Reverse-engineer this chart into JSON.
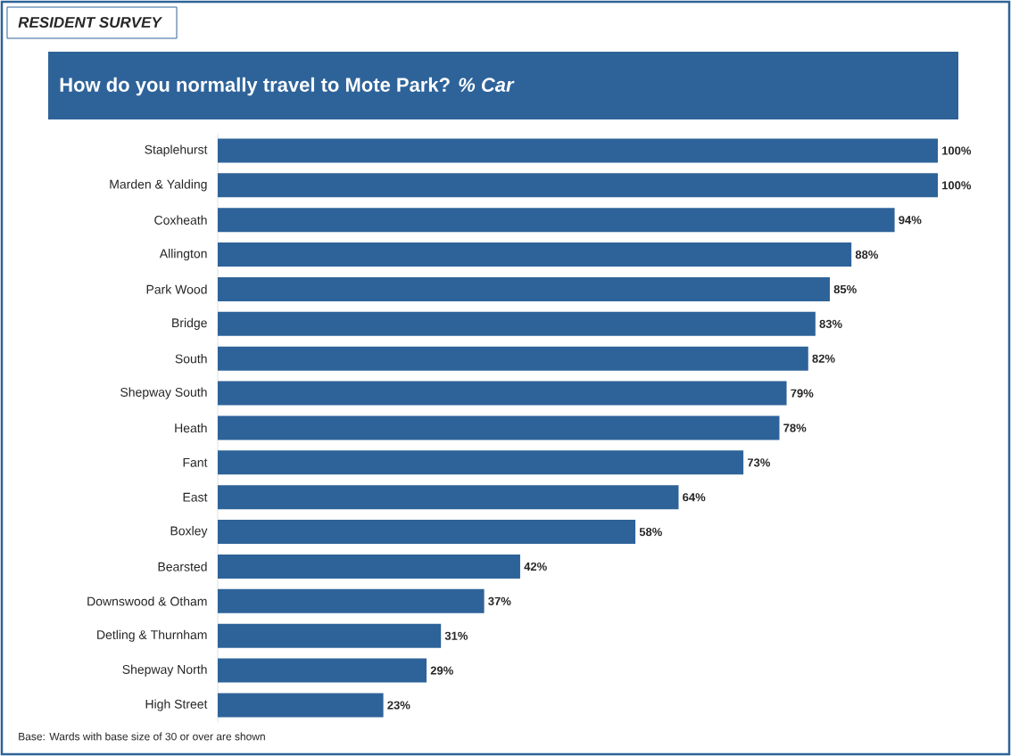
{
  "chart_data": {
    "type": "bar",
    "orientation": "horizontal",
    "subtitle": "RESIDENT SURVEY",
    "title": "How do you normally travel to Mote Park? *% Car*",
    "categories": [
      "Staplehurst",
      "Marden & Yalding",
      "Coxheath",
      "Allington",
      "Park Wood",
      "Bridge",
      "South",
      "Shepway South",
      "Heath",
      "Fant",
      "East",
      "Boxley",
      "Bearsted",
      "Downswood & Otham",
      "Detling & Thurnham",
      "Shepway North",
      "High Street"
    ],
    "values": [
      100,
      100,
      94,
      88,
      85,
      83,
      82,
      79,
      78,
      73,
      64,
      58,
      42,
      37,
      31,
      29,
      23
    ],
    "value_labels": [
      "100%",
      "100%",
      "94%",
      "88%",
      "85%",
      "83%",
      "82%",
      "79%",
      "78%",
      "73%",
      "64%",
      "58%",
      "42%",
      "37%",
      "31%",
      "29%",
      "23%"
    ],
    "color": "#2e6399",
    "xlim": [
      0,
      100
    ],
    "annotations": [
      "Base: Wards with base size of 30 or over are shown"
    ]
  }
}
